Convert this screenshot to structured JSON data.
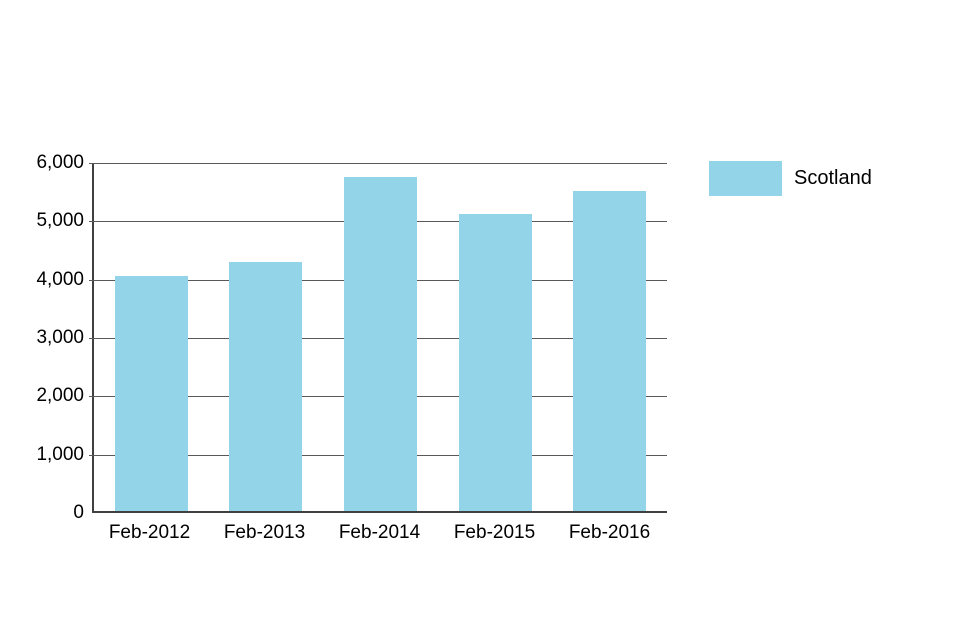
{
  "chart_data": {
    "type": "bar",
    "title": "",
    "categories": [
      "Feb-2012",
      "Feb-2013",
      "Feb-2014",
      "Feb-2015",
      "Feb-2016"
    ],
    "series": [
      {
        "name": "Scotland",
        "values": [
          4025,
          4270,
          5725,
          5095,
          5480
        ],
        "color": "#93d4e8"
      }
    ],
    "xlabel": "",
    "ylabel": "",
    "ylim": [
      0,
      6000
    ],
    "ytick_interval": 1000,
    "yticks": [
      0,
      1000,
      2000,
      3000,
      4000,
      5000,
      6000
    ],
    "ytick_labels": [
      "0",
      "1,000",
      "2,000",
      "3,000",
      "4,000",
      "5,000",
      "6,000"
    ],
    "grid": true,
    "legend_position": "top-right"
  },
  "colors": {
    "bar_fill": "#93d4e8",
    "gridline": "#595959",
    "axis": "#404040",
    "text": "#000000",
    "background": "#ffffff"
  },
  "legend": {
    "label": "Scotland"
  }
}
